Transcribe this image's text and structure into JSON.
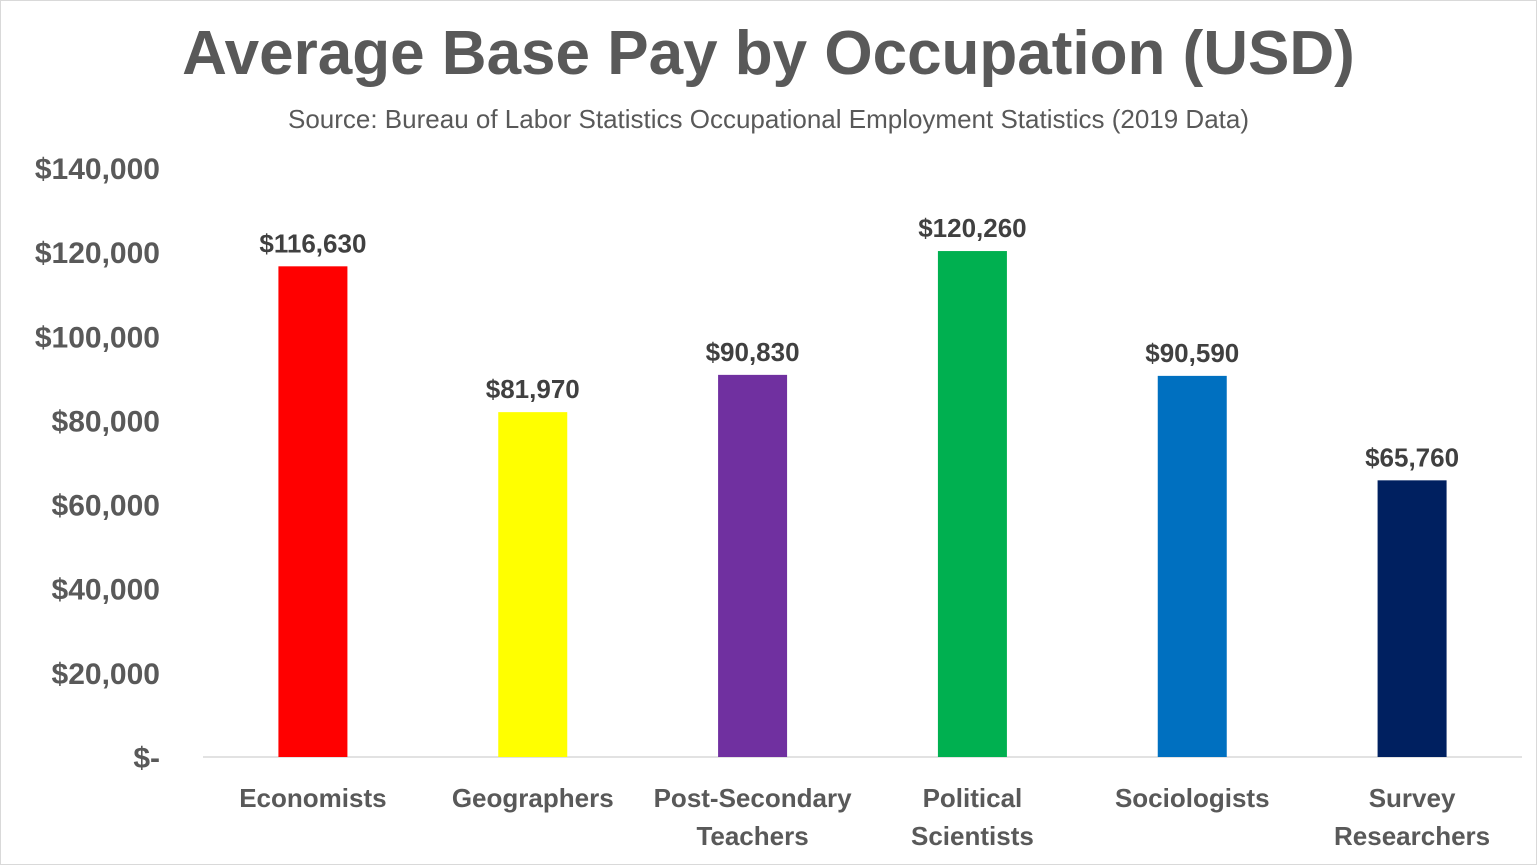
{
  "chart_data": {
    "type": "bar",
    "title": "Average Base Pay by Occupation (USD)",
    "subtitle": "Source: Bureau of Labor Statistics Occupational Employment Statistics (2019 Data)",
    "categories": [
      [
        "Economists"
      ],
      [
        "Geographers"
      ],
      [
        "Post-Secondary",
        "Teachers"
      ],
      [
        "Political",
        "Scientists"
      ],
      [
        "Sociologists"
      ],
      [
        "Survey",
        "Researchers"
      ]
    ],
    "values": [
      116630,
      81970,
      90830,
      120260,
      90590,
      65760
    ],
    "data_labels": [
      "$116,630",
      "$81,970",
      "$90,830",
      "$120,260",
      "$90,590",
      "$65,760"
    ],
    "colors": [
      "#FF0000",
      "#FFFF00",
      "#7030A0",
      "#00B050",
      "#0070C0",
      "#002060"
    ],
    "ylim": [
      0,
      140000
    ],
    "yticks": [
      0,
      20000,
      40000,
      60000,
      80000,
      100000,
      120000,
      140000
    ],
    "ytick_labels": [
      "$-",
      "$20,000",
      "$40,000",
      "$60,000",
      "$80,000",
      "$100,000",
      "$120,000",
      "$140,000"
    ],
    "grid": false,
    "legend": "none"
  }
}
